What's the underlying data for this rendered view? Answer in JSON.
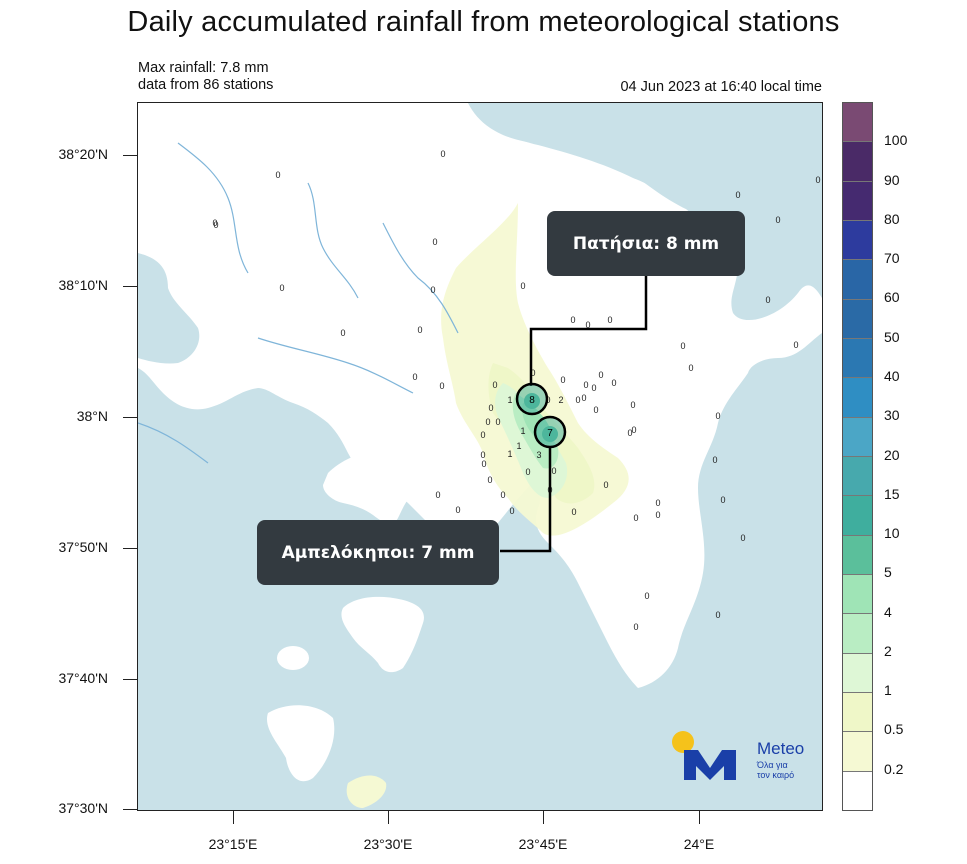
{
  "title": "Daily accumulated rainfall from meteorological stations",
  "max_rainfall": "Max rainfall: 7.8 mm",
  "stations_count": "data from 86 stations",
  "timestamp": "04 Jun 2023 at 16:40 local time",
  "lat_labels": [
    "38°20'N",
    "38°10'N",
    "38°N",
    "37°50'N",
    "37°40'N",
    "37°30'N"
  ],
  "lon_labels": [
    "23°15'E",
    "23°30'E",
    "23°45'E",
    "24°E"
  ],
  "legend": {
    "labels": [
      "100",
      "90",
      "80",
      "70",
      "60",
      "50",
      "40",
      "30",
      "20",
      "15",
      "10",
      "5",
      "4",
      "2",
      "1",
      "0.5",
      "0.2"
    ],
    "colors": [
      "#7a4a73",
      "#4a2a67",
      "#452a70",
      "#2d3b9e",
      "#2966a6",
      "#2a6aa6",
      "#2b78b2",
      "#2f8ec3",
      "#4ba6c6",
      "#47a9ad",
      "#3fae9e",
      "#5bbf9b",
      "#9fe4b6",
      "#b9edc3",
      "#def7d6",
      "#eff7c8",
      "#f5f9d3",
      "#ffffff"
    ]
  },
  "callouts": {
    "patisia": "Πατήσια: 8 mm",
    "ampelokipoi": "Αμπελόκηποι: 7 mm"
  },
  "station_values": {
    "patisia": "8",
    "ampelokipoi": "7",
    "others": [
      "0",
      "1",
      "2",
      "3"
    ]
  },
  "brand": {
    "name": "Meteo",
    "slogan_line1": "Όλα για",
    "slogan_line2": "τον καιρό",
    "colors": {
      "blue": "#1a3fa8",
      "sun": "#f5c21b"
    }
  },
  "colors": {
    "sea": "#c9e1e8",
    "land": "#ffffff",
    "rivers": "#7fb5d9"
  }
}
